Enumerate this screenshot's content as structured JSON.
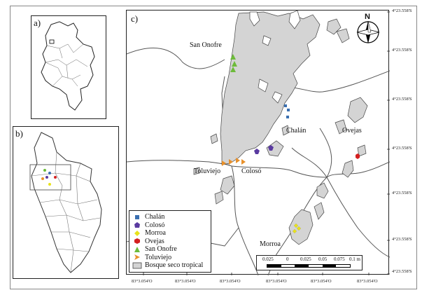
{
  "panels": {
    "a": "a)",
    "b": "b)",
    "c": "c)"
  },
  "places": {
    "san_onofre": "San Onofre",
    "chalan": "Chalán",
    "ovejas": "Ovejas",
    "toluviejo": "Toluviejo",
    "coloso": "Colosó",
    "morroa": "Morroa"
  },
  "legend": [
    {
      "label": "Chalán",
      "symbol": "square",
      "color": "#3a6fb0"
    },
    {
      "label": "Colosó",
      "symbol": "pentagon",
      "color": "#5a3aa0"
    },
    {
      "label": "Morroa",
      "symbol": "diamond",
      "color": "#e8e21a"
    },
    {
      "label": "Ovejas",
      "symbol": "hexagon",
      "color": "#d42020"
    },
    {
      "label": "San Onofre",
      "symbol": "triangle",
      "color": "#6dbb3a"
    },
    {
      "label": "Toluviejo",
      "symbol": "arrow",
      "color": "#e8902a"
    },
    {
      "label": "Bosque seco tropical",
      "symbol": "box",
      "color": "#d4d4d4"
    }
  ],
  "north_label": "N",
  "scale": {
    "labels": [
      "0.025",
      "0",
      "0.025",
      "0.05",
      "0.075",
      "0.1 m"
    ]
  },
  "coords": {
    "lat": [
      "4°23.558'S",
      "4°23.558'S",
      "4°23.558'S",
      "4°23.558'S",
      "4°23.558'S",
      "4°23.558'S",
      "4°23.558'S"
    ],
    "lon": [
      "83°3.054'O",
      "83°3.054'O",
      "83°3.054'O",
      "83°3.054'O",
      "83°3.054'O",
      "83°3.054'O"
    ]
  }
}
